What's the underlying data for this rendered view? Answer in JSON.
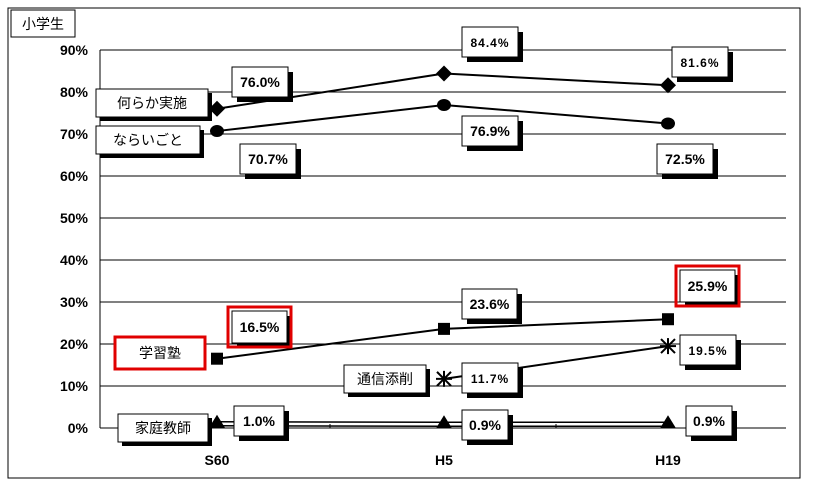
{
  "chart_data": {
    "type": "line",
    "title": "小学生",
    "categories": [
      "S60",
      "H5",
      "H19"
    ],
    "ylim": [
      0,
      90
    ],
    "yticks": [
      "0%",
      "10%",
      "20%",
      "30%",
      "40%",
      "50%",
      "60%",
      "70%",
      "80%",
      "90%"
    ],
    "grid": true,
    "series": [
      {
        "name": "何らか実施",
        "marker": "diamond",
        "values": [
          76.0,
          84.4,
          81.6
        ],
        "labels": [
          "76.0%",
          "84.4%",
          "81.6%"
        ],
        "highlight": [
          false,
          false,
          false
        ]
      },
      {
        "name": "ならいごと",
        "marker": "circle",
        "values": [
          70.7,
          76.9,
          72.5
        ],
        "labels": [
          "70.7%",
          "76.9%",
          "72.5%"
        ],
        "highlight": [
          false,
          false,
          false
        ]
      },
      {
        "name": "学習塾",
        "marker": "square",
        "values": [
          16.5,
          23.6,
          25.9
        ],
        "labels": [
          "16.5%",
          "23.6%",
          "25.9%"
        ],
        "highlight": [
          true,
          false,
          true
        ]
      },
      {
        "name": "通信添削",
        "marker": "asterisk",
        "values": [
          null,
          11.7,
          19.5
        ],
        "labels": [
          "",
          "11.7%",
          "19.5%"
        ],
        "highlight": [
          false,
          false,
          false
        ]
      },
      {
        "name": "家庭教師",
        "marker": "triangle",
        "values": [
          1.0,
          0.9,
          0.9
        ],
        "labels": [
          "1.0%",
          "0.9%",
          "0.9%"
        ],
        "highlight": [
          false,
          false,
          false
        ]
      }
    ],
    "colors": {
      "line": "#000000",
      "highlight_border": "#e00000",
      "grid": "#000000"
    }
  }
}
